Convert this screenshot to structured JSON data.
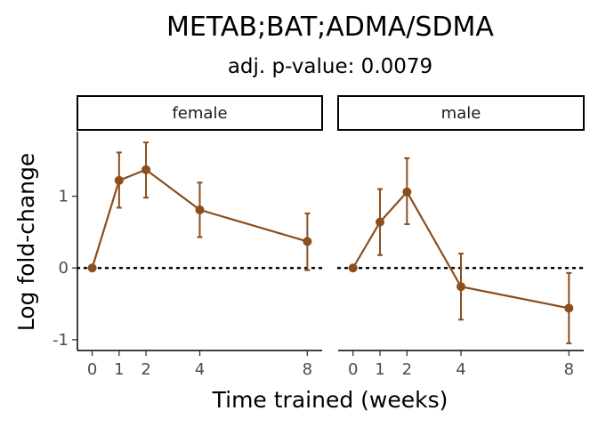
{
  "chart_data": {
    "type": "line",
    "title": "METAB;BAT;ADMA/SDMA",
    "subtitle": "adj. p-value: 0.0079",
    "xlabel": "Time trained (weeks)",
    "ylabel": "Log fold-change",
    "x_ticks": [
      0,
      1,
      2,
      4,
      8
    ],
    "y_ticks": [
      -1,
      0,
      1
    ],
    "ylim": [
      -1.15,
      1.9
    ],
    "reference_line": 0,
    "color": "#8B4E1D",
    "panels": [
      {
        "name": "female",
        "x": [
          0,
          1,
          2,
          4,
          8
        ],
        "y": [
          0,
          1.22,
          1.37,
          0.81,
          0.37
        ],
        "ci_low": [
          0,
          0.84,
          0.98,
          0.43,
          -0.03
        ],
        "ci_high": [
          0,
          1.61,
          1.75,
          1.19,
          0.76
        ]
      },
      {
        "name": "male",
        "x": [
          0,
          1,
          2,
          4,
          8
        ],
        "y": [
          0,
          0.64,
          1.06,
          -0.26,
          -0.56
        ],
        "ci_low": [
          0,
          0.18,
          0.61,
          -0.72,
          -1.05
        ],
        "ci_high": [
          0,
          1.1,
          1.53,
          0.2,
          -0.07
        ]
      }
    ]
  }
}
